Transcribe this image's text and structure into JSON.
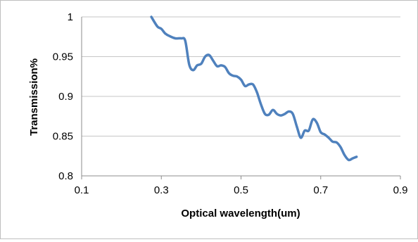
{
  "chart_data": {
    "type": "line",
    "title": "",
    "xlabel": "Optical wavelength(um)",
    "ylabel": "Transmission%",
    "xlim": [
      0.1,
      0.9
    ],
    "ylim": [
      0.8,
      1.0
    ],
    "xticks": [
      "0.1",
      "0.3",
      "0.5",
      "0.7",
      "0.9"
    ],
    "yticks": [
      "0.8",
      "0.85",
      "0.9",
      "0.95",
      "1"
    ],
    "grid": "horizontal",
    "legend": "none",
    "series": [
      {
        "color": "#4f81bd",
        "x": [
          0.275,
          0.29,
          0.3,
          0.31,
          0.32,
          0.335,
          0.35,
          0.36,
          0.37,
          0.38,
          0.39,
          0.4,
          0.41,
          0.42,
          0.43,
          0.44,
          0.45,
          0.46,
          0.47,
          0.48,
          0.49,
          0.5,
          0.51,
          0.52,
          0.53,
          0.54,
          0.55,
          0.56,
          0.57,
          0.58,
          0.59,
          0.6,
          0.61,
          0.62,
          0.63,
          0.64,
          0.65,
          0.66,
          0.67,
          0.68,
          0.69,
          0.7,
          0.71,
          0.72,
          0.73,
          0.74,
          0.75,
          0.76,
          0.77,
          0.78,
          0.79
        ],
        "y": [
          1.0,
          0.988,
          0.985,
          0.979,
          0.976,
          0.973,
          0.973,
          0.97,
          0.94,
          0.933,
          0.939,
          0.941,
          0.95,
          0.952,
          0.945,
          0.938,
          0.939,
          0.937,
          0.929,
          0.926,
          0.925,
          0.921,
          0.913,
          0.915,
          0.915,
          0.905,
          0.89,
          0.878,
          0.877,
          0.883,
          0.878,
          0.876,
          0.878,
          0.881,
          0.878,
          0.862,
          0.848,
          0.857,
          0.857,
          0.871,
          0.867,
          0.855,
          0.852,
          0.848,
          0.843,
          0.842,
          0.836,
          0.826,
          0.82,
          0.822,
          0.824
        ]
      }
    ]
  }
}
